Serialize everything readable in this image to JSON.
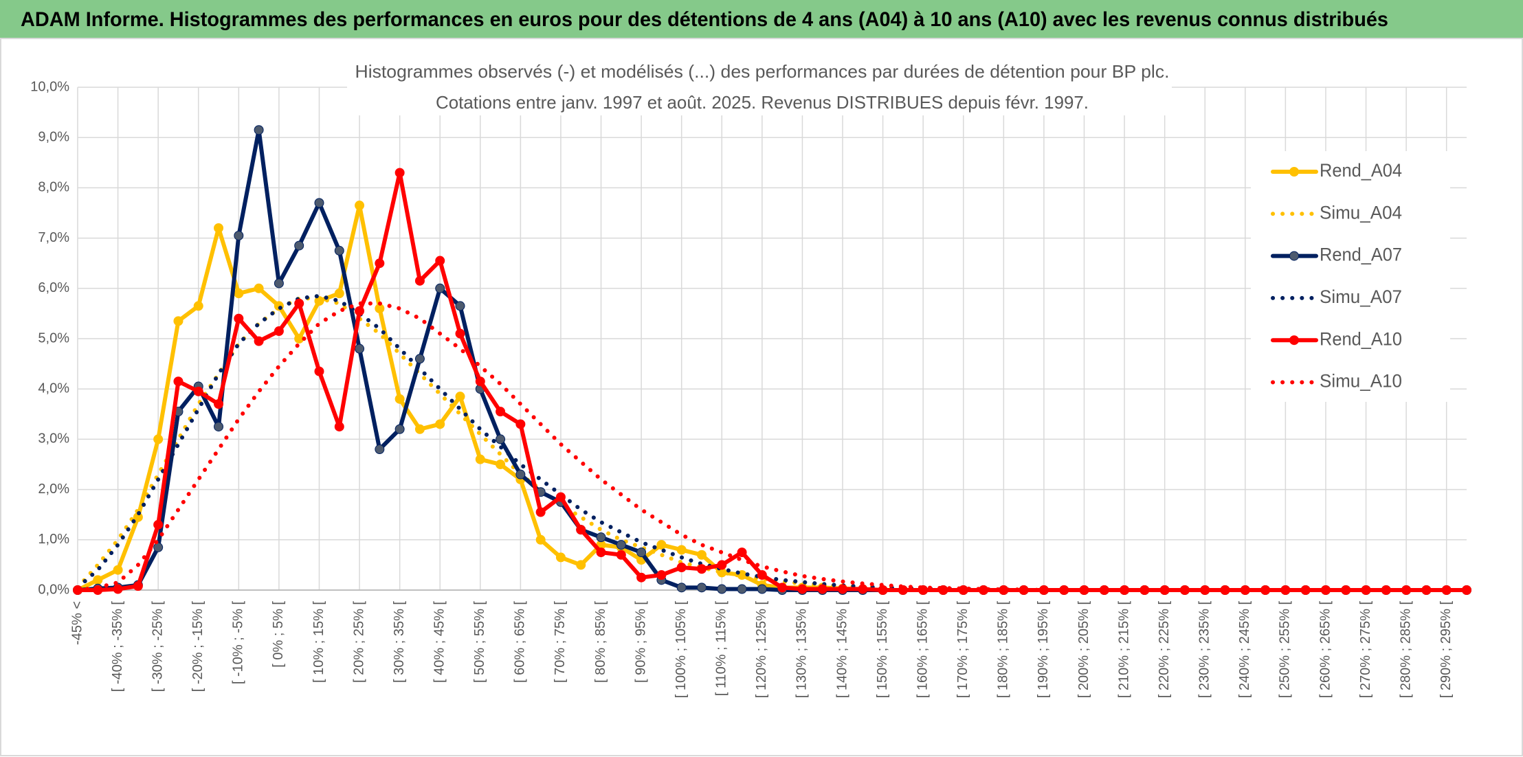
{
  "chart_data": {
    "type": "line",
    "header": "ADAM Informe. Histogrammes des performances en euros pour des détentions de 4 ans (A04) à 10 ans (A10) avec les revenus connus distribués",
    "title": [
      "Histogrammes observés (-) et modélisés (...) des performances par durées de détention pour BP plc.",
      "Cotations entre janv. 1997 et août. 2025. Revenus DISTRIBUES depuis févr. 1997."
    ],
    "categories": [
      "-45% <",
      null,
      "[ -40% ; -35% [",
      null,
      "[ -30% ; -25% [",
      null,
      "[ -20% ; -15% [",
      null,
      "[ -10% ; -5% [",
      null,
      "[ 0% ; 5% [",
      null,
      "[ 10% ; 15% [",
      null,
      "[ 20% ; 25% [",
      null,
      "[ 30% ; 35% [",
      null,
      "[ 40% ; 45% [",
      null,
      "[ 50% ; 55% [",
      null,
      "[ 60% ; 65% [",
      null,
      "[ 70% ; 75% [",
      null,
      "[ 80% ; 85% [",
      null,
      "[ 90% ; 95% [",
      null,
      "[ 100% ; 105% [",
      null,
      "[ 110% ; 115% [",
      null,
      "[ 120% ; 125% [",
      null,
      "[ 130% ; 135% [",
      null,
      "[ 140% ; 145% [",
      null,
      "[ 150% ; 155% [",
      null,
      "[ 160% ; 165% [",
      null,
      "[ 170% ; 175% [",
      null,
      "[ 180% ; 185% [",
      null,
      "[ 190% ; 195% [",
      null,
      "[ 200% ; 205% [",
      null,
      "[ 210% ; 215% [",
      null,
      "[ 220% ; 225% [",
      null,
      "[ 230% ; 235% [",
      null,
      "[ 240% ; 245% [",
      null,
      "[ 250% ; 255% [",
      null,
      "[ 260% ; 265% [",
      null,
      "[ 270% ; 275% [",
      null,
      "[ 280% ; 285% [",
      null,
      "[ 290% ; 295% [",
      null
    ],
    "series": [
      {
        "name": "Rend_A04",
        "color": "#FFC000",
        "line_style": "solid",
        "markers": true,
        "values": [
          0,
          0.2,
          0.4,
          1.45,
          3.0,
          5.35,
          5.65,
          7.2,
          5.9,
          6.0,
          5.65,
          5.0,
          5.75,
          5.9,
          7.65,
          5.6,
          3.8,
          3.2,
          3.3,
          3.85,
          2.6,
          2.5,
          2.2,
          1.0,
          0.65,
          0.5,
          0.9,
          0.85,
          0.6,
          0.9,
          0.8,
          0.7,
          0.35,
          0.3,
          0.1,
          0.05,
          0.05,
          0.05,
          0.03,
          0.02,
          0,
          0,
          0,
          0,
          0,
          0,
          0,
          0,
          0,
          0,
          0,
          0,
          0,
          0,
          0,
          0,
          0,
          0,
          0,
          0,
          0,
          0,
          0,
          0,
          0,
          0,
          0,
          0,
          0,
          0
        ]
      },
      {
        "name": "Simu_A04",
        "color": "#FFC000",
        "line_style": "dotted",
        "markers": false,
        "values": [
          0.05,
          0.5,
          1.0,
          1.6,
          2.3,
          3.0,
          3.7,
          4.3,
          4.9,
          5.3,
          5.6,
          5.8,
          5.8,
          5.7,
          5.4,
          5.1,
          4.7,
          4.3,
          3.9,
          3.5,
          3.1,
          2.7,
          2.3,
          2.0,
          1.7,
          1.45,
          1.2,
          1.0,
          0.85,
          0.7,
          0.55,
          0.45,
          0.35,
          0.28,
          0.22,
          0.17,
          0.13,
          0.1,
          0.08,
          0.06,
          0.05,
          0.04,
          0.03,
          0.02,
          0.02,
          0.01,
          0.01,
          0.01,
          0,
          0,
          0,
          0,
          0,
          0,
          0,
          0,
          0,
          0,
          0,
          0,
          0,
          0,
          0,
          0,
          0,
          0,
          0,
          0,
          0,
          0
        ]
      },
      {
        "name": "Rend_A07",
        "color": "#002060",
        "line_style": "solid",
        "markers": true,
        "values": [
          0,
          0.03,
          0.05,
          0.1,
          0.85,
          3.55,
          4.05,
          3.25,
          7.05,
          9.15,
          6.1,
          6.85,
          7.7,
          6.75,
          4.8,
          2.8,
          3.2,
          4.6,
          6.0,
          5.65,
          4.0,
          3.0,
          2.3,
          1.95,
          1.75,
          1.2,
          1.05,
          0.9,
          0.75,
          0.2,
          0.05,
          0.05,
          0.02,
          0.02,
          0.02,
          0,
          0,
          0,
          0,
          0,
          0,
          0,
          0,
          0,
          0,
          0,
          0,
          0,
          0,
          0,
          0,
          0,
          0,
          0,
          0,
          0,
          0,
          0,
          0,
          0,
          0,
          0,
          0,
          0,
          0,
          0,
          0,
          0,
          0,
          0
        ]
      },
      {
        "name": "Simu_A07",
        "color": "#002060",
        "line_style": "dotted",
        "markers": false,
        "values": [
          0.05,
          0.4,
          0.9,
          1.5,
          2.2,
          2.9,
          3.6,
          4.3,
          4.9,
          5.3,
          5.6,
          5.8,
          5.85,
          5.75,
          5.5,
          5.2,
          4.8,
          4.4,
          4.0,
          3.6,
          3.2,
          2.85,
          2.5,
          2.2,
          1.9,
          1.6,
          1.35,
          1.15,
          0.95,
          0.8,
          0.65,
          0.52,
          0.42,
          0.33,
          0.26,
          0.2,
          0.16,
          0.12,
          0.09,
          0.07,
          0.05,
          0.04,
          0.03,
          0.02,
          0.02,
          0.01,
          0.01,
          0,
          0,
          0,
          0,
          0,
          0,
          0,
          0,
          0,
          0,
          0,
          0,
          0,
          0,
          0,
          0,
          0,
          0,
          0,
          0,
          0,
          0,
          0
        ]
      },
      {
        "name": "Rend_A10",
        "color": "#FF0000",
        "line_style": "solid",
        "markers": true,
        "values": [
          0,
          0,
          0.02,
          0.08,
          1.3,
          4.15,
          3.95,
          3.7,
          5.4,
          4.95,
          5.15,
          5.7,
          4.35,
          3.25,
          5.55,
          6.5,
          8.3,
          6.15,
          6.55,
          5.1,
          4.15,
          3.55,
          3.3,
          1.55,
          1.85,
          1.2,
          0.75,
          0.7,
          0.25,
          0.3,
          0.45,
          0.42,
          0.5,
          0.75,
          0.3,
          0.05,
          0.02,
          0.02,
          0.02,
          0.02,
          0,
          0,
          0,
          0,
          0,
          0,
          0,
          0,
          0,
          0,
          0,
          0,
          0,
          0,
          0,
          0,
          0,
          0,
          0,
          0,
          0,
          0,
          0,
          0,
          0,
          0,
          0,
          0,
          0,
          0
        ]
      },
      {
        "name": "Simu_A10",
        "color": "#FF0000",
        "line_style": "dotted",
        "markers": false,
        "values": [
          0,
          0.05,
          0.15,
          0.5,
          1.0,
          1.6,
          2.2,
          2.8,
          3.4,
          3.95,
          4.45,
          4.9,
          5.3,
          5.55,
          5.7,
          5.7,
          5.6,
          5.4,
          5.1,
          4.8,
          4.45,
          4.1,
          3.7,
          3.3,
          2.9,
          2.55,
          2.2,
          1.9,
          1.6,
          1.35,
          1.1,
          0.9,
          0.75,
          0.6,
          0.47,
          0.37,
          0.28,
          0.22,
          0.17,
          0.13,
          0.1,
          0.07,
          0.05,
          0.04,
          0.03,
          0.02,
          0.01,
          0.01,
          0,
          0,
          0,
          0,
          0,
          0,
          0,
          0,
          0,
          0,
          0,
          0,
          0,
          0,
          0,
          0,
          0,
          0,
          0,
          0,
          0,
          0
        ]
      }
    ],
    "ylim": [
      0,
      10
    ],
    "yticks": [
      {
        "value": 0,
        "label": "0,0%"
      },
      {
        "value": 1,
        "label": "1,0%"
      },
      {
        "value": 2,
        "label": "2,0%"
      },
      {
        "value": 3,
        "label": "3,0%"
      },
      {
        "value": 4,
        "label": "4,0%"
      },
      {
        "value": 5,
        "label": "5,0%"
      },
      {
        "value": 6,
        "label": "6,0%"
      },
      {
        "value": 7,
        "label": "7,0%"
      },
      {
        "value": 8,
        "label": "8,0%"
      },
      {
        "value": 9,
        "label": "9,0%"
      },
      {
        "value": 10,
        "label": "10,0%"
      }
    ],
    "grid": true,
    "legend": "right"
  }
}
